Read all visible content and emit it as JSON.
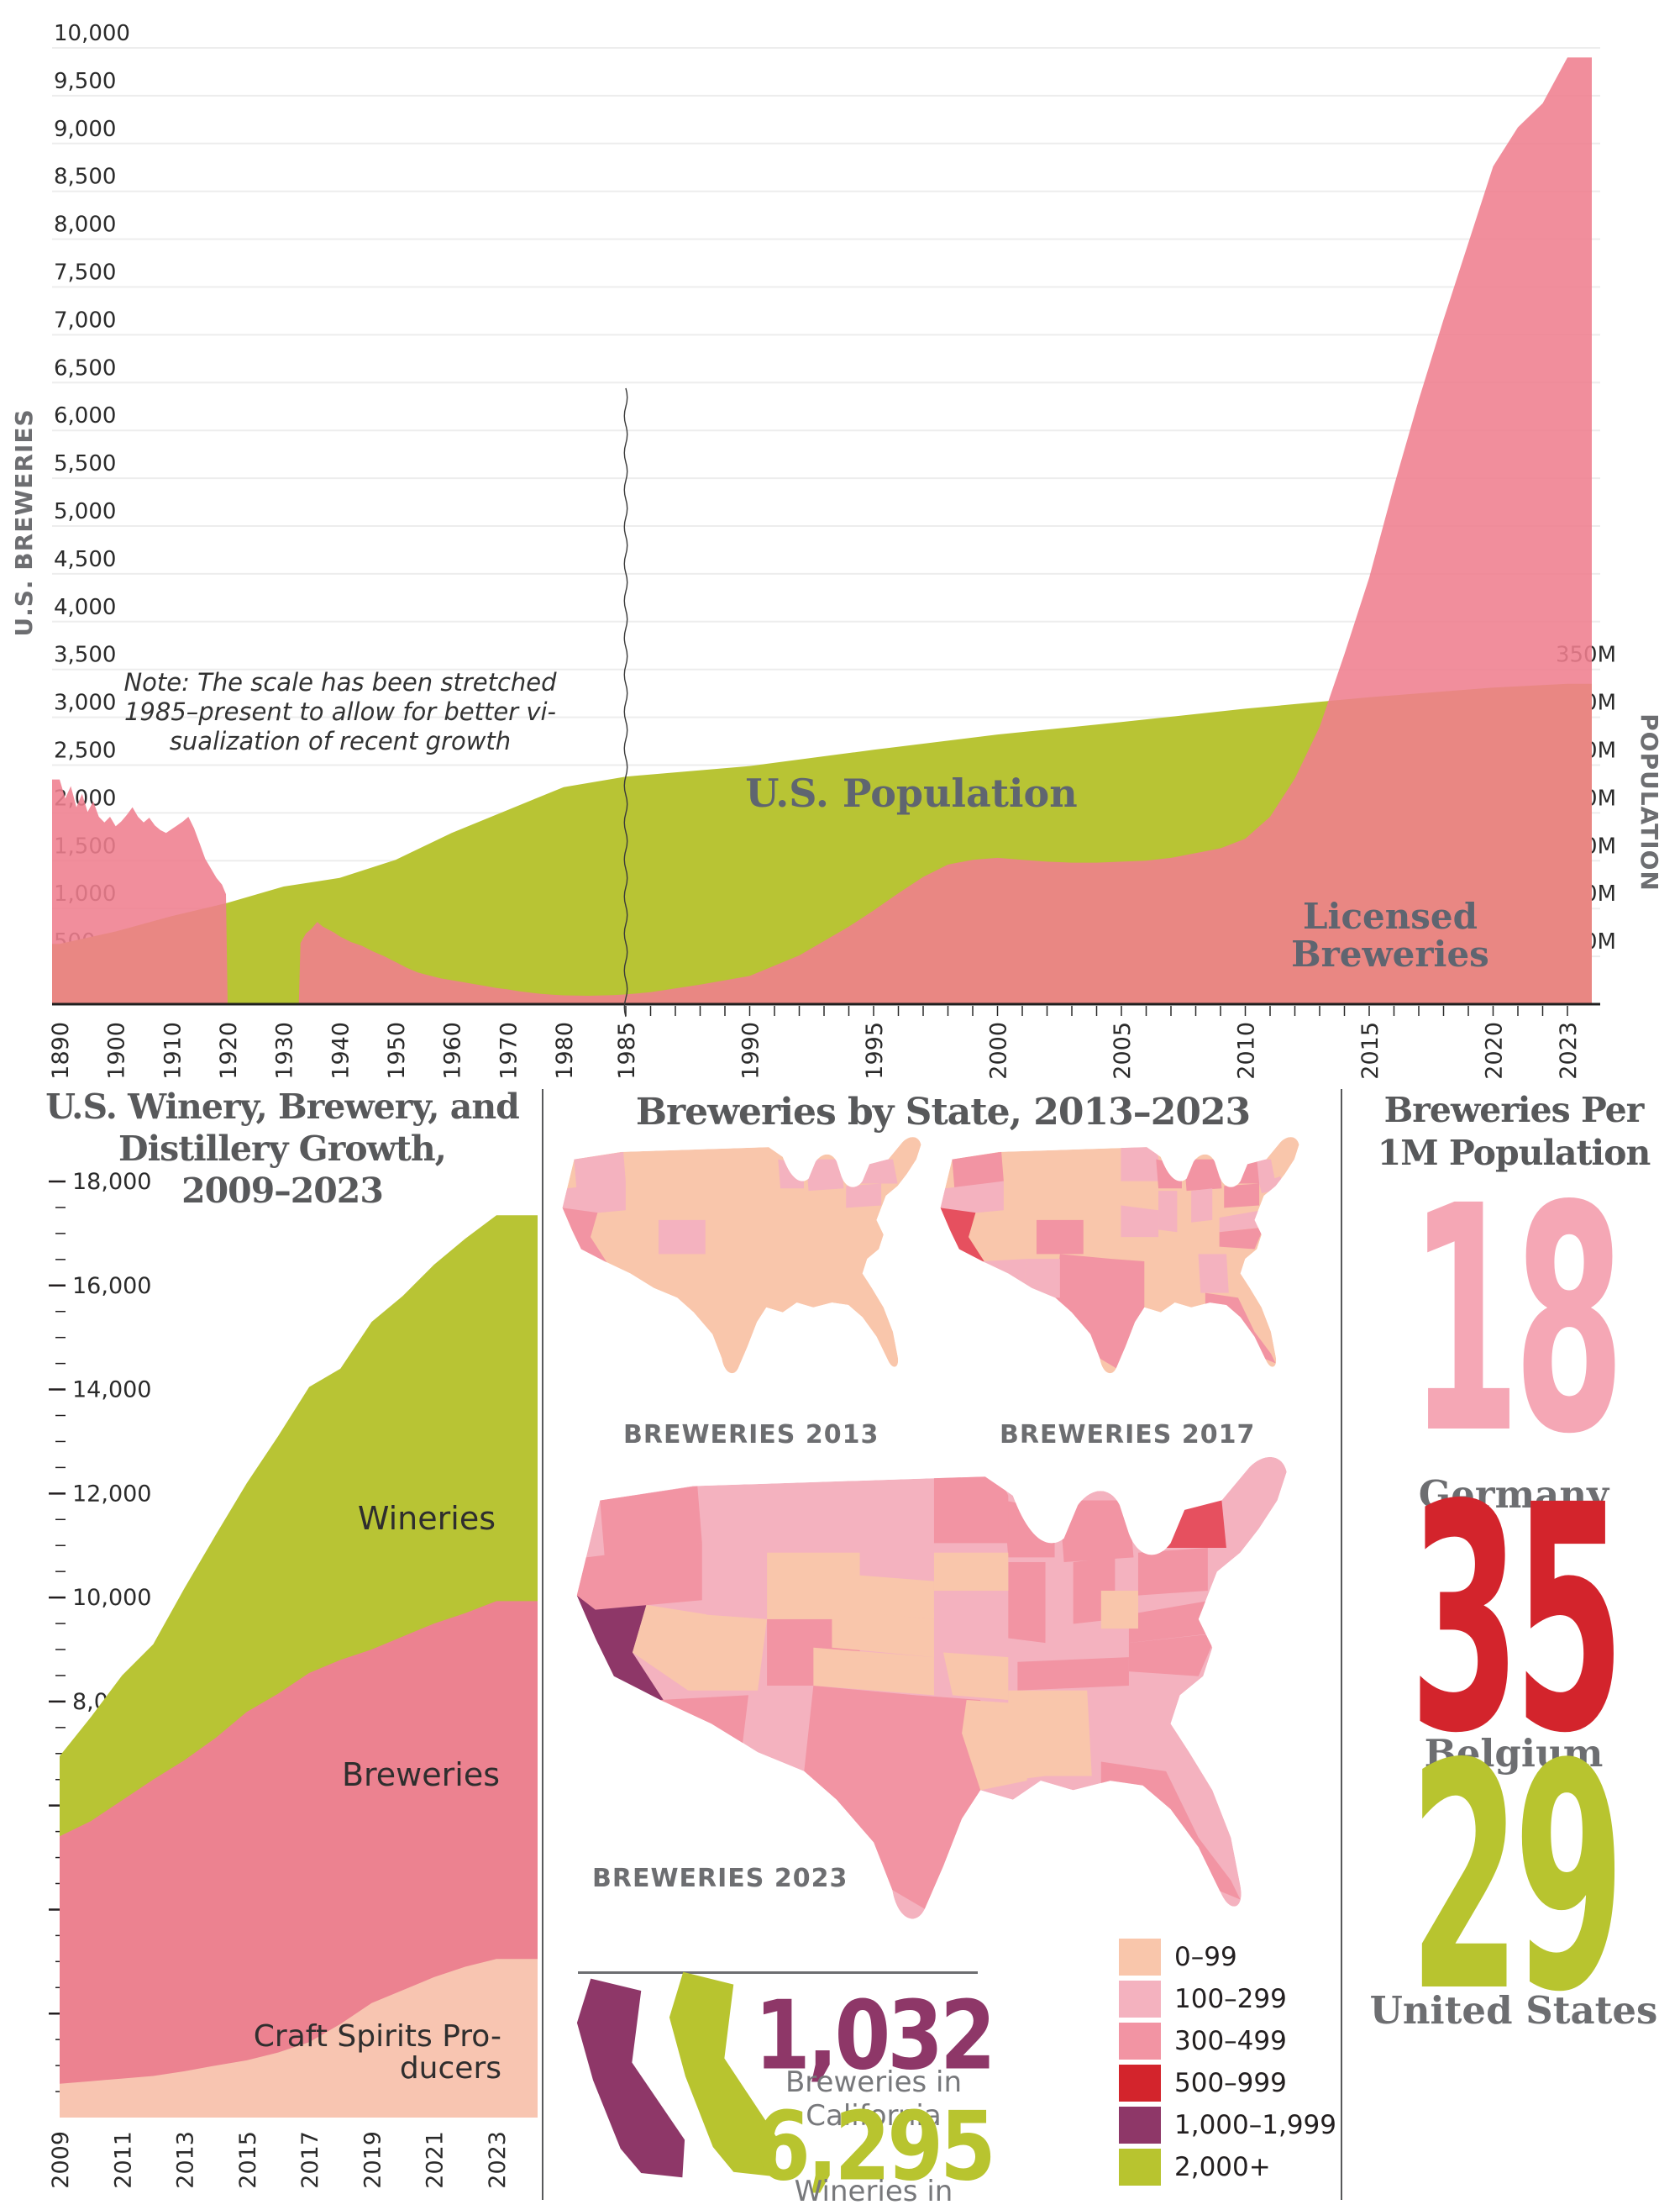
{
  "palette": {
    "pink_area": "#ef7e8e",
    "green_area": "#b8c434",
    "growth_breweries_pink": "#ec8290",
    "growth_craft_peach": "#f8c5b1",
    "title_gray": "#58595b",
    "label_gray": "#6d6e71",
    "axis_text": "#2a2a2a",
    "map_red": "#e6505f",
    "map_purple": "#8e3768",
    "map_olive": "#b8c42f"
  },
  "chart_data": [
    {
      "id": "breweries-vs-population",
      "type": "area",
      "left_axis": {
        "title": "U.S. BREWERIES",
        "min": 0,
        "max": 10000,
        "step": 500
      },
      "right_axis": {
        "title": "POPULATION",
        "unit": "M",
        "min": 0,
        "max": 350,
        "step": 50
      },
      "x_ticks": [
        1890,
        1900,
        1910,
        1920,
        1930,
        1940,
        1950,
        1960,
        1970,
        1980,
        1985,
        1990,
        1995,
        2000,
        2005,
        2010,
        2015,
        2020,
        2023
      ],
      "scale_break_year": 1985,
      "note_lines": [
        "Note: The scale has been stretched",
        "1985–present to allow for better vi-",
        "sualization of recent growth"
      ],
      "series": [
        {
          "name": "U.S. Population",
          "axis": "right",
          "color": "#b8c434",
          "points": [
            [
              1890,
              63
            ],
            [
              1900,
              76
            ],
            [
              1910,
              92
            ],
            [
              1920,
              106
            ],
            [
              1930,
              123
            ],
            [
              1940,
              132
            ],
            [
              1950,
              151
            ],
            [
              1960,
              179
            ],
            [
              1970,
              203
            ],
            [
              1980,
              227
            ],
            [
              1985,
              238
            ],
            [
              1990,
              249
            ],
            [
              1995,
              266
            ],
            [
              2000,
              282
            ],
            [
              2005,
              295
            ],
            [
              2010,
              309
            ],
            [
              2015,
              321
            ],
            [
              2020,
              331
            ],
            [
              2023,
              335
            ]
          ]
        },
        {
          "name": "Licensed Breweries",
          "axis": "left",
          "color": "#ef7e8e",
          "points": [
            [
              1890,
              2350
            ],
            [
              1891,
              2150
            ],
            [
              1892,
              2280
            ],
            [
              1893,
              2060
            ],
            [
              1894,
              2200
            ],
            [
              1895,
              2010
            ],
            [
              1896,
              2120
            ],
            [
              1897,
              1960
            ],
            [
              1898,
              1900
            ],
            [
              1899,
              1960
            ],
            [
              1900,
              1860
            ],
            [
              1901,
              1910
            ],
            [
              1902,
              1980
            ],
            [
              1903,
              2060
            ],
            [
              1904,
              1960
            ],
            [
              1905,
              1900
            ],
            [
              1906,
              1950
            ],
            [
              1907,
              1870
            ],
            [
              1908,
              1820
            ],
            [
              1909,
              1790
            ],
            [
              1910,
              1830
            ],
            [
              1911,
              1870
            ],
            [
              1912,
              1910
            ],
            [
              1913,
              1960
            ],
            [
              1914,
              1840
            ],
            [
              1915,
              1680
            ],
            [
              1916,
              1520
            ],
            [
              1917,
              1420
            ],
            [
              1918,
              1320
            ],
            [
              1919,
              1250
            ],
            [
              1919.7,
              1150
            ],
            [
              1920,
              0
            ],
            [
              1932.7,
              0
            ],
            [
              1933,
              640
            ],
            [
              1934,
              740
            ],
            [
              1935,
              790
            ],
            [
              1936,
              860
            ],
            [
              1937,
              810
            ],
            [
              1938,
              780
            ],
            [
              1939,
              750
            ],
            [
              1940,
              710
            ],
            [
              1942,
              650
            ],
            [
              1944,
              610
            ],
            [
              1946,
              550
            ],
            [
              1948,
              500
            ],
            [
              1950,
              440
            ],
            [
              1952,
              380
            ],
            [
              1954,
              330
            ],
            [
              1956,
              300
            ],
            [
              1958,
              270
            ],
            [
              1960,
              250
            ],
            [
              1962,
              230
            ],
            [
              1964,
              210
            ],
            [
              1966,
              190
            ],
            [
              1968,
              170
            ],
            [
              1970,
              155
            ],
            [
              1972,
              135
            ],
            [
              1974,
              120
            ],
            [
              1976,
              108
            ],
            [
              1978,
              98
            ],
            [
              1980,
              92
            ],
            [
              1982,
              88
            ],
            [
              1984,
              94
            ],
            [
              1985,
              102
            ],
            [
              1986,
              125
            ],
            [
              1988,
              205
            ],
            [
              1990,
              295
            ],
            [
              1992,
              510
            ],
            [
              1994,
              810
            ],
            [
              1995,
              980
            ],
            [
              1996,
              1160
            ],
            [
              1997,
              1330
            ],
            [
              1998,
              1460
            ],
            [
              1999,
              1510
            ],
            [
              2000,
              1530
            ],
            [
              2001,
              1510
            ],
            [
              2002,
              1490
            ],
            [
              2003,
              1480
            ],
            [
              2004,
              1480
            ],
            [
              2005,
              1490
            ],
            [
              2006,
              1500
            ],
            [
              2007,
              1530
            ],
            [
              2008,
              1580
            ],
            [
              2009,
              1630
            ],
            [
              2010,
              1730
            ],
            [
              2011,
              1960
            ],
            [
              2012,
              2360
            ],
            [
              2013,
              2900
            ],
            [
              2014,
              3660
            ],
            [
              2015,
              4460
            ],
            [
              2016,
              5420
            ],
            [
              2017,
              6320
            ],
            [
              2018,
              7160
            ],
            [
              2019,
              7960
            ],
            [
              2020,
              8760
            ],
            [
              2021,
              9170
            ],
            [
              2022,
              9420
            ],
            [
              2023,
              9900
            ]
          ]
        }
      ]
    },
    {
      "id": "winery-brewery-distillery-growth",
      "type": "stacked-area",
      "title": "U.S. Winery, Brewery, and Distillery Growth, 2009–2023",
      "title_lines": [
        "U.S. Winery, Brewery, and",
        "Distillery Growth,",
        "2009–2023"
      ],
      "y_axis": {
        "min": 0,
        "max": 18000,
        "step": 2000,
        "minor_step": 500
      },
      "x_ticks": [
        2009,
        2011,
        2013,
        2015,
        2017,
        2019,
        2021,
        2023
      ],
      "years": [
        2009,
        2010,
        2011,
        2012,
        2013,
        2014,
        2015,
        2016,
        2017,
        2018,
        2019,
        2020,
        2021,
        2022,
        2023
      ],
      "series": [
        {
          "name": "Craft Spirits Producers",
          "label_lines": [
            "Craft Spirits Pro-",
            "ducers"
          ],
          "color": "#f8c5b1",
          "values": [
            650,
            700,
            750,
            800,
            890,
            1000,
            1100,
            1250,
            1450,
            1800,
            2200,
            2450,
            2700,
            2900,
            3050
          ]
        },
        {
          "name": "Breweries",
          "color": "#ec8290",
          "values": [
            4760,
            5000,
            5350,
            5700,
            5980,
            6300,
            6700,
            6900,
            7100,
            7000,
            6800,
            6800,
            6800,
            6800,
            6880
          ]
        },
        {
          "name": "Wineries",
          "color": "#b8c434",
          "values": [
            1540,
            2000,
            2400,
            2600,
            3310,
            3900,
            4400,
            4950,
            5500,
            5600,
            6300,
            6550,
            6900,
            7200,
            7420
          ]
        }
      ]
    },
    {
      "id": "breweries-by-state",
      "type": "choropleth",
      "title": "Breweries by State, 2013–2023",
      "legend": {
        "bins": [
          {
            "label": "0–99",
            "color": "#f9c6ab"
          },
          {
            "label": "100–299",
            "color": "#f4b2bf"
          },
          {
            "label": "300–499",
            "color": "#f294a3"
          },
          {
            "label": "500–999",
            "color": "#d3242c"
          },
          {
            "label": "1,000–1,999",
            "color": "#8e3768"
          },
          {
            "label": "2,000+",
            "color": "#b8c42f"
          }
        ]
      },
      "maps": [
        {
          "label": "BREWERIES 2013",
          "base_bin": 0,
          "states": {
            "WA": 1,
            "OR": 1,
            "CA": 2,
            "CO": 1,
            "WI": 1,
            "MI": 1,
            "NY": 1,
            "PA": 1,
            "VTNH": 1
          }
        },
        {
          "label": "BREWERIES 2017",
          "base_bin": 0,
          "states": {
            "WA": 2,
            "OR": 1,
            "CA": 3,
            "CO": 2,
            "MN": 1,
            "WI": 2,
            "MI": 2,
            "IL": 1,
            "OH": 1,
            "NY": 2,
            "PA": 2,
            "VTNH": 1,
            "MA": 1,
            "VA": 1,
            "NC": 2,
            "GA": 1,
            "FL": 2,
            "TX": 2,
            "AZ": 1,
            "NM": 1,
            "MO": 1
          }
        },
        {
          "label": "BREWERIES 2023",
          "base_bin": 1,
          "states": {
            "CA": 4,
            "NY": 3,
            "WA": 2,
            "OR": 2,
            "CO": 2,
            "MI": 2,
            "WI": 2,
            "MN": 2,
            "IL": 2,
            "OH": 2,
            "PA": 2,
            "VA": 2,
            "NC": 2,
            "TN": 2,
            "TX": 2,
            "FL": 2,
            "AZ": 2,
            "NV": 0,
            "UT": 0,
            "WY": 0,
            "NE": 0,
            "KS": 0,
            "OK": 0,
            "AR": 0,
            "MS": 0,
            "AL": 0,
            "LA": 0,
            "WV": 0,
            "IA": 0
          }
        }
      ],
      "california_callout": {
        "breweries_value": "1,032",
        "breweries_caption": "Breweries in California",
        "wineries_value": "6,295",
        "wineries_caption": "Wineries in California"
      }
    },
    {
      "id": "breweries-per-1m-population",
      "type": "big-number",
      "title": "Breweries Per 1M Population",
      "title_lines": [
        "Breweries Per",
        "1M Population"
      ],
      "items": [
        {
          "country": "Germany",
          "value": "18",
          "color": "#f5a7b5"
        },
        {
          "country": "Belgium",
          "value": "35",
          "color": "#d3242c"
        },
        {
          "country": "United States",
          "value": "29",
          "color": "#b8c42f"
        }
      ]
    }
  ]
}
